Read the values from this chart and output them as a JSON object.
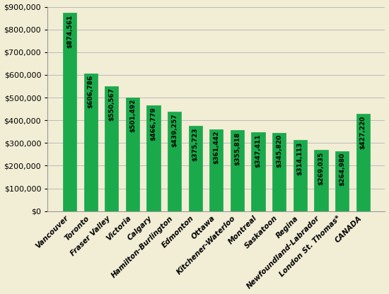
{
  "categories": [
    "Vancouver",
    "Toronto",
    "Fraser Valley",
    "Victoria",
    "Calgary",
    "Hamilton-Burlington",
    "Edmonton",
    "Ottawa",
    "Kitchener-Waterloo",
    "Montreal",
    "Saskatoon",
    "Regina",
    "Newfoundland-Labrador",
    "London St. Thomas*",
    "CANADA"
  ],
  "values": [
    874561,
    606786,
    550567,
    501492,
    466779,
    439257,
    375723,
    361442,
    355818,
    347411,
    345820,
    314113,
    269035,
    264980,
    427220
  ],
  "bar_color": "#1aaa4b",
  "bar_edge_color": "#1aaa4b",
  "background_color": "#F2EDD5",
  "ylim": [
    0,
    900000
  ],
  "ytick_step": 100000,
  "label_fontsize": 6.5,
  "xtick_fontsize": 7.5,
  "ytick_fontsize": 8,
  "grid_color": "#BBBBBB",
  "bar_width": 0.65
}
